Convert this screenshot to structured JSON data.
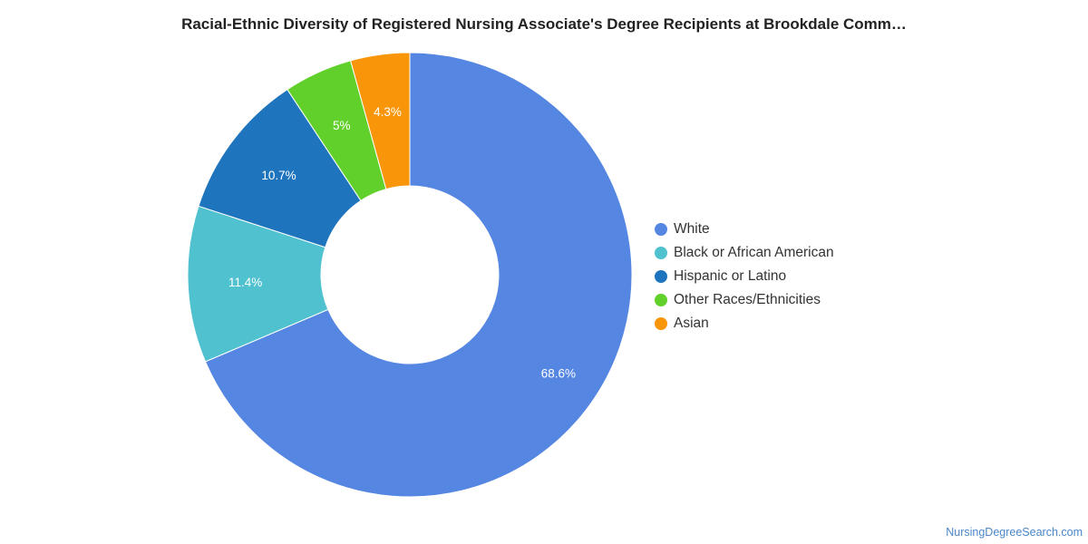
{
  "chart_data": {
    "type": "pie",
    "title": "Racial-Ethnic Diversity of Registered Nursing Associate's Degree Recipients at Brookdale Comm…",
    "donut": true,
    "legend_position": "right",
    "slices": [
      {
        "label": "White",
        "value": 68.6,
        "display": "68.6%",
        "color": "#5486e2"
      },
      {
        "label": "Black or African American",
        "value": 11.4,
        "display": "11.4%",
        "color": "#4fc1cf"
      },
      {
        "label": "Hispanic or Latino",
        "value": 10.7,
        "display": "10.7%",
        "color": "#1f75bd"
      },
      {
        "label": "Other Races/Ethnicities",
        "value": 5,
        "display": "5%",
        "color": "#62d02a"
      },
      {
        "label": "Asian",
        "value": 4.3,
        "display": "4.3%",
        "color": "#f99508"
      }
    ]
  },
  "source": "NursingDegreeSearch.com"
}
